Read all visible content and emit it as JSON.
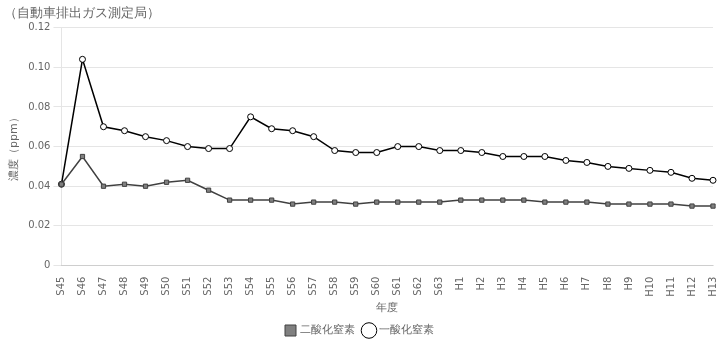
{
  "chart_data": {
    "type": "line",
    "title": "（自動車排出ガス測定局）",
    "xlabel": "年度",
    "ylabel": "濃度（ppm）",
    "categories": [
      "S45",
      "S46",
      "S47",
      "S48",
      "S49",
      "S50",
      "S51",
      "S52",
      "S53",
      "S54",
      "S55",
      "S56",
      "S57",
      "S58",
      "S59",
      "S60",
      "S61",
      "S62",
      "S63",
      "H1",
      "H2",
      "H3",
      "H4",
      "H5",
      "H6",
      "H7",
      "H8",
      "H9",
      "H10",
      "H11",
      "H12",
      "H13"
    ],
    "series": [
      {
        "name": "二酸化窒素",
        "color": "#404040",
        "marker": "square",
        "values": [
          0.041,
          0.055,
          0.04,
          0.041,
          0.04,
          0.042,
          0.043,
          0.038,
          0.033,
          0.033,
          0.033,
          0.031,
          0.032,
          0.032,
          0.031,
          0.032,
          0.032,
          0.032,
          0.032,
          0.033,
          0.033,
          0.033,
          0.033,
          0.032,
          0.032,
          0.032,
          0.031,
          0.031,
          0.031,
          0.031,
          0.03,
          0.03
        ]
      },
      {
        "name": "一酸化窒素",
        "color": "#000000",
        "marker": "circle",
        "values": [
          0.041,
          0.104,
          0.07,
          0.068,
          0.065,
          0.063,
          0.06,
          0.059,
          0.059,
          0.075,
          0.069,
          0.068,
          0.065,
          0.058,
          0.057,
          0.057,
          0.06,
          0.06,
          0.058,
          0.058,
          0.057,
          0.055,
          0.055,
          0.055,
          0.053,
          0.052,
          0.05,
          0.049,
          0.048,
          0.047,
          0.044,
          0.043
        ]
      }
    ],
    "ylim": [
      0,
      0.12
    ],
    "yticks": [
      0,
      0.02,
      0.04,
      0.06,
      0.08,
      {
        "value": 0.1,
        "label": "0.10"
      },
      0.12
    ],
    "grid": true,
    "legend": "bottom"
  }
}
